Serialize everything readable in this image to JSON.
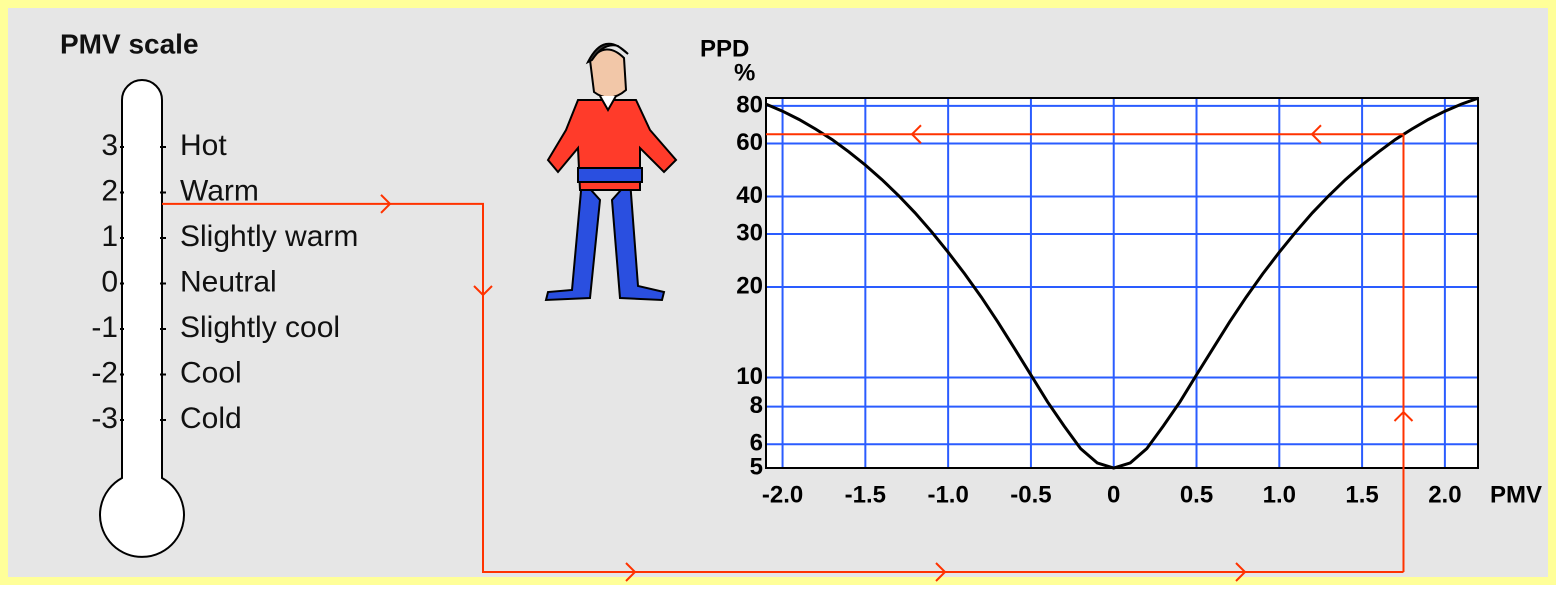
{
  "thermometer": {
    "title": "PMV scale",
    "scale": [
      {
        "value": "3",
        "label": "Hot"
      },
      {
        "value": "2",
        "label": "Warm"
      },
      {
        "value": "1",
        "label": "Slightly warm"
      },
      {
        "value": "0",
        "label": "Neutral"
      },
      {
        "value": "-1",
        "label": "Slightly cool"
      },
      {
        "value": "-2",
        "label": "Cool"
      },
      {
        "value": "-3",
        "label": "Cold"
      }
    ]
  },
  "chart_data": {
    "type": "line",
    "title": "PPD",
    "y_unit": "%",
    "x_label": "PMV",
    "x": [
      -2.1,
      -2.0,
      -1.9,
      -1.8,
      -1.7,
      -1.6,
      -1.5,
      -1.4,
      -1.3,
      -1.2,
      -1.1,
      -1.0,
      -0.9,
      -0.8,
      -0.7,
      -0.6,
      -0.5,
      -0.4,
      -0.3,
      -0.2,
      -0.1,
      0,
      0.1,
      0.2,
      0.3,
      0.4,
      0.5,
      0.6,
      0.7,
      0.8,
      0.9,
      1.0,
      1.1,
      1.2,
      1.3,
      1.4,
      1.5,
      1.6,
      1.7,
      1.8,
      1.9,
      2.0,
      2.1,
      2.2
    ],
    "values": [
      81.1,
      76.8,
      72.1,
      67.0,
      61.8,
      56.3,
      50.9,
      45.5,
      40.3,
      35.3,
      30.5,
      26.1,
      22.1,
      18.5,
      15.3,
      12.5,
      10.2,
      8.3,
      6.9,
      5.8,
      5.2,
      5.0,
      5.2,
      5.8,
      6.9,
      8.3,
      10.2,
      12.5,
      15.3,
      18.5,
      22.1,
      26.1,
      30.5,
      35.3,
      40.3,
      45.5,
      50.9,
      56.3,
      61.8,
      67.0,
      72.1,
      76.8,
      81.1,
      84.9
    ],
    "color": "#000000",
    "xlim": [
      -2.1,
      2.2
    ],
    "xticks": [
      {
        "value": -2.0,
        "label": "-2.0"
      },
      -1.5,
      {
        "value": -1.0,
        "label": "-1.0"
      },
      -0.5,
      0,
      0.5,
      {
        "value": 1.0,
        "label": "1.0"
      },
      1.5,
      {
        "value": 2.0,
        "label": "2.0"
      }
    ],
    "ylim": [
      5,
      85
    ],
    "y_log": true,
    "yticks": [
      5,
      6,
      8,
      10,
      20,
      30,
      40,
      60,
      80
    ],
    "grid": true,
    "grid_color": "#2a5cff",
    "marker": {
      "pmv": 1.75,
      "ppd": 64.4,
      "color": "#ff3300"
    }
  }
}
